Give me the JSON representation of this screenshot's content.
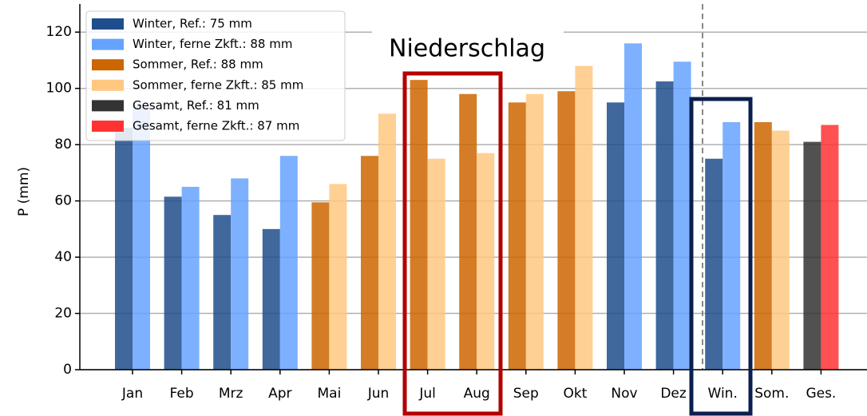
{
  "chart_data": {
    "type": "bar",
    "annotation": "Niederschlag",
    "ylabel": "P (mm)",
    "categories": [
      "Jan",
      "Feb",
      "Mrz",
      "Apr",
      "Mai",
      "Jun",
      "Jul",
      "Aug",
      "Sep",
      "Okt",
      "Nov",
      "Dez",
      "Win.",
      "Som.",
      "Ges."
    ],
    "series": [
      {
        "name": "Winter, Ref.: 75 mm",
        "color": "#1f4e8c",
        "values": [
          86,
          61.5,
          55,
          50,
          null,
          null,
          null,
          null,
          null,
          null,
          95,
          102.5,
          75,
          null,
          null
        ]
      },
      {
        "name": "Winter, ferne Zkft.: 88 mm",
        "color": "#66a3ff",
        "values": [
          94,
          65,
          68,
          76,
          null,
          null,
          null,
          null,
          null,
          null,
          116,
          109.5,
          88,
          null,
          null
        ]
      },
      {
        "name": "Sommer, Ref.: 88 mm",
        "color": "#cc6600",
        "values": [
          null,
          null,
          null,
          null,
          59.5,
          76,
          103,
          98,
          95,
          99,
          null,
          null,
          null,
          88,
          null
        ]
      },
      {
        "name": "Sommer, ferne Zkft.: 85 mm",
        "color": "#ffc880",
        "values": [
          null,
          null,
          null,
          null,
          66,
          91,
          75,
          77,
          98,
          108,
          null,
          null,
          null,
          85,
          null
        ]
      },
      {
        "name": "Gesamt, Ref.: 81 mm",
        "color": "#333333",
        "values": [
          null,
          null,
          null,
          null,
          null,
          null,
          null,
          null,
          null,
          null,
          null,
          null,
          null,
          null,
          81
        ]
      },
      {
        "name": "Gesamt, ferne Zkft.: 87 mm",
        "color": "#ff3333",
        "values": [
          null,
          null,
          null,
          null,
          null,
          null,
          null,
          null,
          null,
          null,
          null,
          null,
          null,
          null,
          87
        ]
      }
    ],
    "ylim": [
      0,
      130
    ],
    "yticks": [
      0,
      20,
      40,
      60,
      80,
      100,
      120
    ],
    "grid": true,
    "legend": "upper left"
  }
}
